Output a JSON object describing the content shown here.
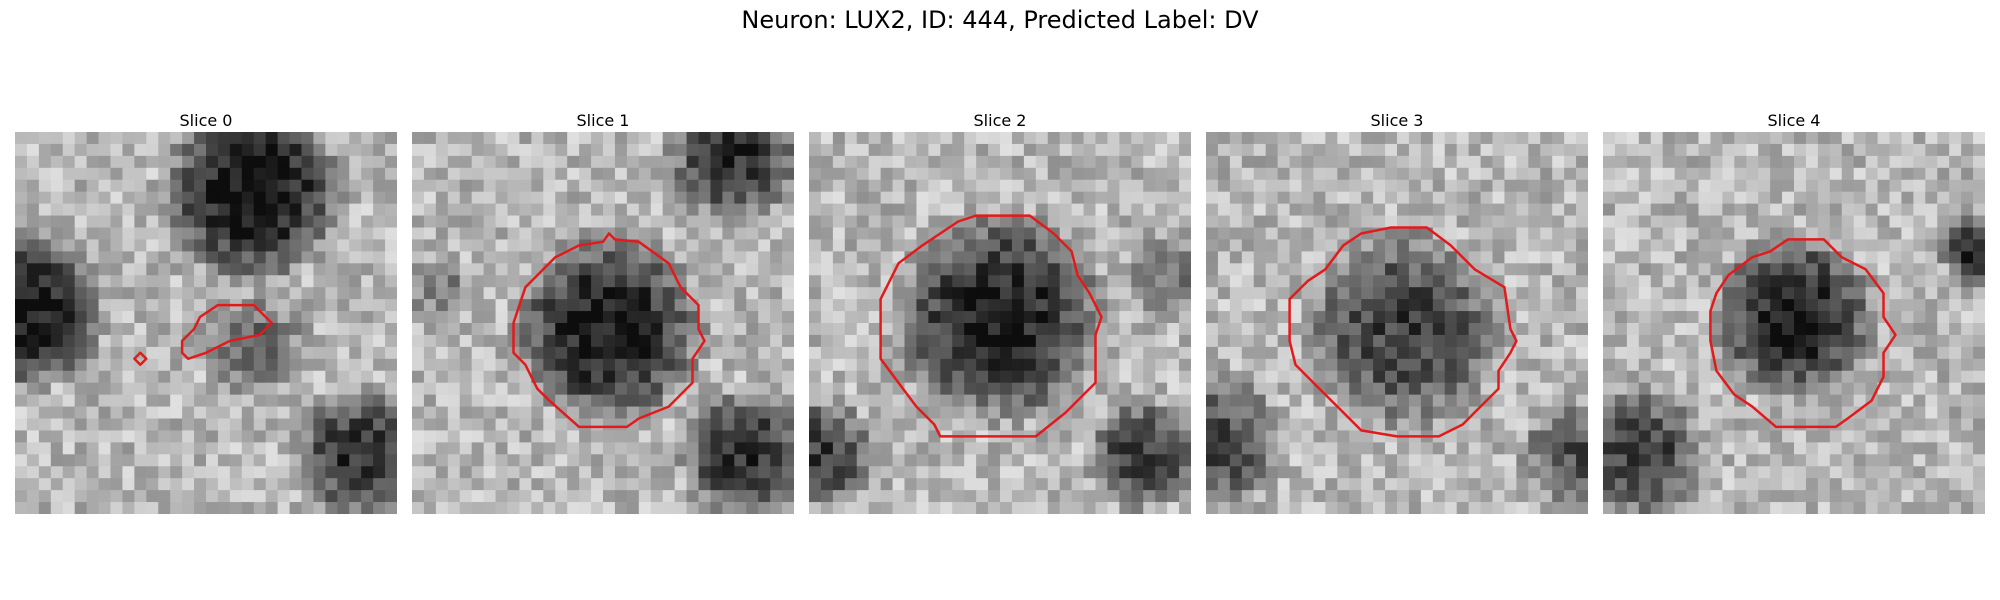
{
  "figure": {
    "title": "Neuron: LUX2, ID: 444, Predicted Label: DV",
    "contour_color": "#e31a1c",
    "colormap": "grayscale",
    "panels": [
      {
        "title": "Slice 0"
      },
      {
        "title": "Slice 1"
      },
      {
        "title": "Slice 2"
      },
      {
        "title": "Slice 3"
      },
      {
        "title": "Slice 4"
      }
    ]
  }
}
